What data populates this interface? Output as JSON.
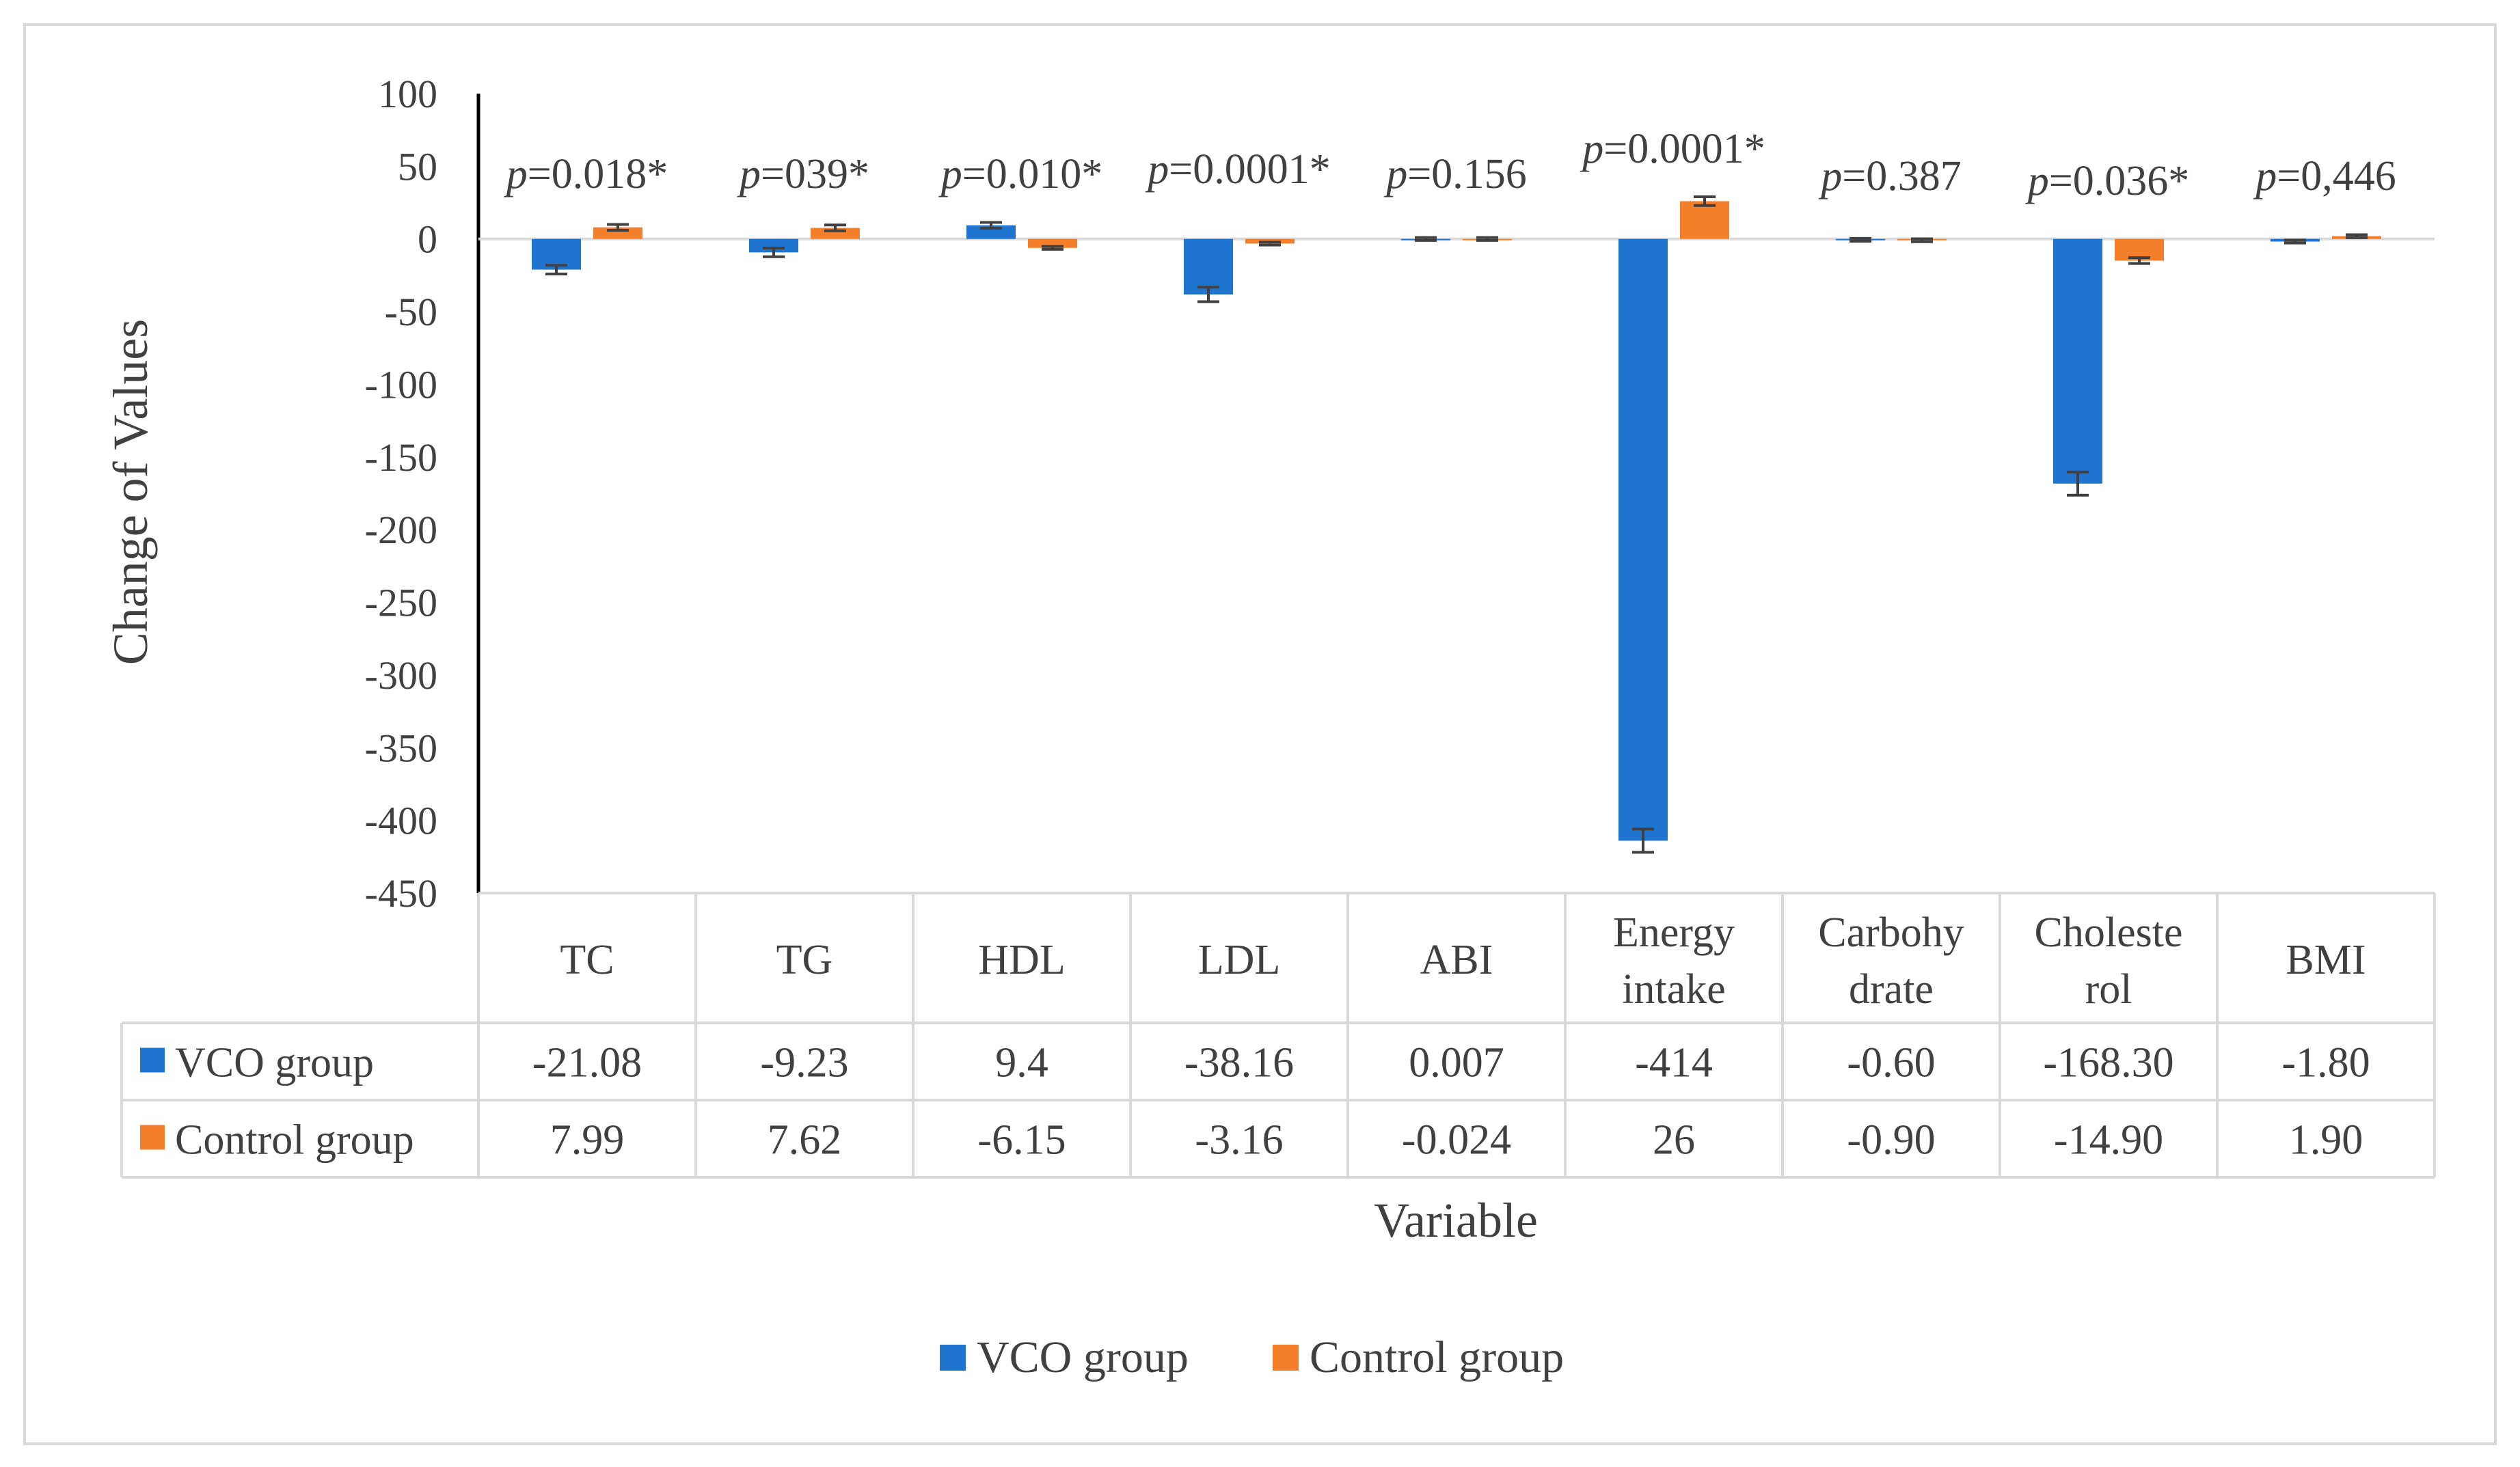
{
  "chart_data": {
    "type": "bar",
    "title": "",
    "xlabel": "Variable",
    "ylabel": "Change of Values",
    "ylim": [
      -450,
      100
    ],
    "yticks": [
      100,
      50,
      0,
      -50,
      -100,
      -150,
      -200,
      -250,
      -300,
      -350,
      -400,
      -450
    ],
    "grid": false,
    "legend": "bottom",
    "categories": [
      [
        "TC"
      ],
      [
        "TG"
      ],
      [
        "HDL"
      ],
      [
        "LDL"
      ],
      [
        "ABI"
      ],
      [
        "Energy",
        "intake"
      ],
      [
        "Carbohy",
        "drate"
      ],
      [
        "Choleste",
        "rol"
      ],
      [
        "BMI"
      ]
    ],
    "pvalues": [
      "=0.018*",
      "=039*",
      "=0.010*",
      "=0.0001*",
      "=0.156",
      "=0.0001*",
      "=0.387",
      "=0.036*",
      "=0,446"
    ],
    "p_symbol": "p",
    "series": [
      {
        "name": "VCO group",
        "color": "#1f74d0",
        "values": [
          -21.08,
          -9.23,
          9.4,
          -38.16,
          0.007,
          -414,
          -0.6,
          -168.3,
          -1.8
        ],
        "labels": [
          "-21.08",
          "-9.23",
          "9.4",
          "-38.16",
          "0.007",
          "-414",
          "-0.60",
          "-168.30",
          "-1.80"
        ],
        "errors": [
          3,
          3,
          2,
          5,
          1,
          8,
          1,
          8,
          1
        ]
      },
      {
        "name": "Control group",
        "color": "#f47f2a",
        "values": [
          7.99,
          7.62,
          -6.15,
          -3.16,
          -0.024,
          26,
          -0.9,
          -14.9,
          1.9
        ],
        "labels": [
          "7.99",
          "7.62",
          "-6.15",
          "-3.16",
          "-0.024",
          "26",
          "-0.90",
          "-14.90",
          "1.90"
        ],
        "errors": [
          2,
          2,
          1,
          1,
          1,
          3,
          1,
          2,
          1
        ]
      }
    ]
  }
}
